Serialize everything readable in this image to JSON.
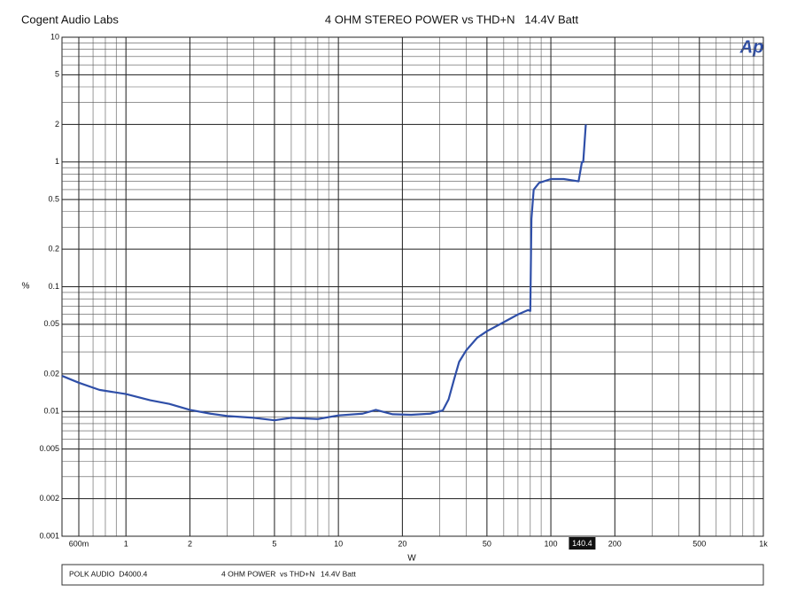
{
  "chart_data": {
    "type": "line",
    "company": "Cogent Audio Labs",
    "title": "4 OHM STEREO POWER vs THD+N   14.4V Batt",
    "logo": "Ap",
    "x_label": "W",
    "y_label": "%",
    "xscale": "log",
    "yscale": "log",
    "grid": true,
    "xlim": [
      0.5,
      1000
    ],
    "ylim": [
      0.001,
      10
    ],
    "xticks": [
      {
        "value": 0.6,
        "label": "600m"
      },
      1,
      2,
      5,
      10,
      20,
      50,
      100,
      200,
      500,
      {
        "value": 1000,
        "label": "1k"
      }
    ],
    "yticks": [
      0.001,
      0.002,
      0.005,
      0.01,
      0.02,
      0.05,
      0.1,
      0.2,
      0.5,
      1,
      2,
      5,
      10
    ],
    "cursor_value": 140.4,
    "x": [
      0.5,
      0.6,
      0.75,
      1.0,
      1.3,
      1.6,
      2.0,
      2.5,
      3,
      4,
      5,
      6,
      8,
      10,
      13,
      15,
      18,
      22,
      27,
      31,
      33,
      35,
      37,
      40,
      45,
      50,
      60,
      70,
      78,
      80,
      81,
      83,
      88,
      100,
      115,
      135,
      140,
      142,
      146
    ],
    "series": [
      {
        "color": "#2f4fa8",
        "values": [
          0.0193,
          0.017,
          0.0149,
          0.0138,
          0.0123,
          0.0115,
          0.0103,
          0.0096,
          0.0092,
          0.0089,
          0.0085,
          0.0089,
          0.0087,
          0.0093,
          0.0096,
          0.0103,
          0.0095,
          0.0094,
          0.0096,
          0.0102,
          0.0125,
          0.018,
          0.025,
          0.031,
          0.039,
          0.044,
          0.052,
          0.06,
          0.065,
          0.064,
          0.35,
          0.6,
          0.68,
          0.73,
          0.73,
          0.7,
          1.0,
          1.0,
          2.0
        ]
      }
    ],
    "footer": [
      "POLK AUDIO  D4000.4",
      "4 OHM POWER  vs THD+N",
      "14.4V Batt"
    ]
  }
}
